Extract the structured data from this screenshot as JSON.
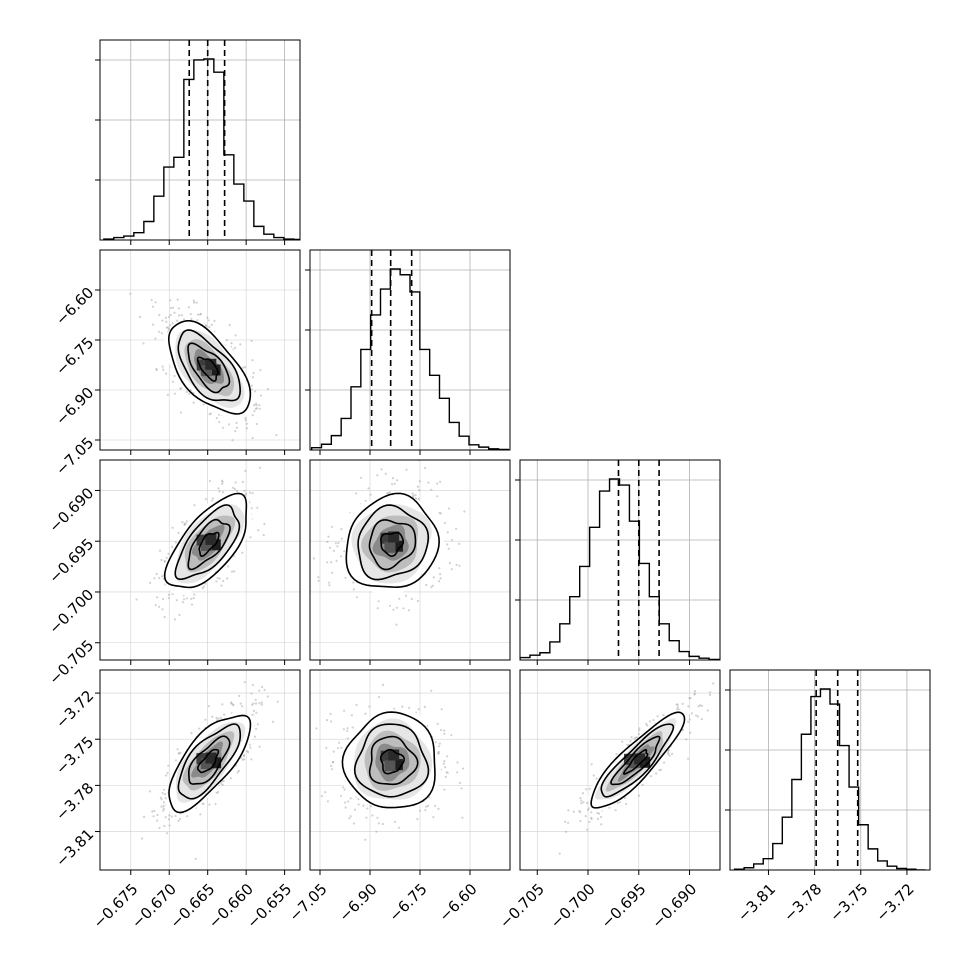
{
  "chart_data": {
    "type": "corner",
    "title": "",
    "grid": true,
    "parameters": [
      {
        "name": "",
        "range": [
          -0.679,
          -0.653
        ],
        "ticks": [
          -0.675,
          -0.67,
          -0.665,
          -0.66,
          -0.655
        ],
        "tick_labels": [
          "−0.675",
          "−0.670",
          "−0.665",
          "−0.660",
          "−0.655"
        ],
        "quantiles": [
          -0.6674,
          -0.665,
          -0.6628
        ],
        "histogram": {
          "edges_from": -0.6785,
          "bin_width": 0.0013,
          "counts": [
            2,
            5,
            8,
            15,
            38,
            90,
            150,
            170,
            330,
            370,
            372,
            345,
            175,
            115,
            80,
            28,
            12,
            5,
            2,
            1
          ]
        },
        "peak": -0.6649
      },
      {
        "name": "",
        "range": [
          -7.08,
          -6.48
        ],
        "ticks": [
          -7.05,
          -6.9,
          -6.75,
          -6.6
        ],
        "tick_labels": [
          "−7.05",
          "−6.90",
          "−6.75",
          "−6.60"
        ],
        "quantiles": [
          -6.895,
          -6.838,
          -6.775
        ],
        "histogram": {
          "edges_from": -7.075,
          "bin_width": 0.0295,
          "counts": [
            4,
            10,
            25,
            55,
            110,
            175,
            235,
            280,
            315,
            305,
            275,
            175,
            130,
            90,
            48,
            24,
            9,
            5,
            2,
            1
          ]
        },
        "peak": -6.835
      },
      {
        "name": "",
        "range": [
          -0.7067,
          -0.687
        ],
        "ticks": [
          -0.705,
          -0.7,
          -0.695,
          -0.69
        ],
        "tick_labels": [
          "−0.705",
          "−0.700",
          "−0.695",
          "−0.690"
        ],
        "quantiles": [
          -0.697,
          -0.695,
          -0.693
        ],
        "histogram": {
          "edges_from": -0.7067,
          "bin_width": 0.00098,
          "counts": [
            4,
            8,
            12,
            30,
            60,
            105,
            155,
            220,
            280,
            300,
            290,
            230,
            160,
            105,
            60,
            32,
            14,
            6,
            3,
            1
          ]
        },
        "peak": -0.6952
      },
      {
        "name": "",
        "range": [
          -3.835,
          -3.705
        ],
        "ticks": [
          -3.81,
          -3.78,
          -3.75,
          -3.72
        ],
        "tick_labels": [
          "−3.81",
          "−3.78",
          "−3.75",
          "−3.72"
        ],
        "quantiles": [
          -3.779,
          -3.765,
          -3.752
        ],
        "histogram": {
          "edges_from": -3.832,
          "bin_width": 0.0062,
          "counts": [
            1,
            3,
            8,
            15,
            35,
            70,
            120,
            180,
            230,
            240,
            220,
            165,
            110,
            60,
            28,
            12,
            5,
            2,
            1,
            0
          ]
        },
        "peak": -3.7645
      }
    ],
    "correlations": {
      "1-0": -0.6,
      "2-0": 0.65,
      "2-1": 0.1,
      "3-0": 0.72,
      "3-1": 0.0,
      "3-2": 0.88
    }
  }
}
